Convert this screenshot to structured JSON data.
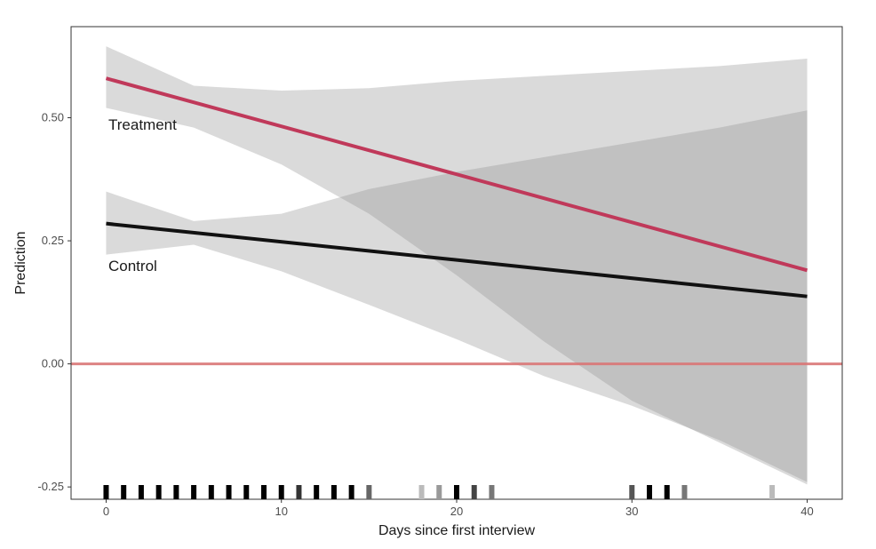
{
  "chart_data": {
    "type": "line",
    "xlabel": "Days since first interview",
    "ylabel": "Prediction",
    "xlim": [
      -2,
      42
    ],
    "ylim": [
      -0.275,
      0.685
    ],
    "x_ticks": [
      0,
      10,
      20,
      30,
      40
    ],
    "x_tick_labels": [
      "0",
      "10",
      "20",
      "30",
      "40"
    ],
    "y_ticks": [
      -0.25,
      0,
      0.25,
      0.5
    ],
    "y_tick_labels": [
      "-0.25",
      "0.00",
      "0.25",
      "0.50"
    ],
    "grid": false,
    "reference_line": {
      "y": 0,
      "color": "#d97575"
    },
    "series": [
      {
        "name": "Treatment",
        "color": "#c0395a",
        "x": [
          0,
          40
        ],
        "y": [
          0.58,
          0.19
        ],
        "ci_x": [
          0,
          5,
          10,
          15,
          20,
          25,
          30,
          35,
          40
        ],
        "ci_lower": [
          0.52,
          0.48,
          0.405,
          0.305,
          0.18,
          0.045,
          -0.075,
          -0.16,
          -0.245
        ],
        "ci_upper": [
          0.645,
          0.565,
          0.555,
          0.56,
          0.575,
          0.585,
          0.595,
          0.605,
          0.62
        ]
      },
      {
        "name": "Control",
        "color": "#111111",
        "x": [
          0,
          40
        ],
        "y": [
          0.285,
          0.137
        ],
        "ci_x": [
          0,
          5,
          10,
          15,
          20,
          25,
          30,
          35,
          40
        ],
        "ci_lower": [
          0.222,
          0.242,
          0.188,
          0.12,
          0.05,
          -0.025,
          -0.085,
          -0.155,
          -0.24
        ],
        "ci_upper": [
          0.35,
          0.29,
          0.305,
          0.355,
          0.39,
          0.42,
          0.45,
          0.48,
          0.515
        ]
      }
    ],
    "rug": [
      {
        "x": 0,
        "shade": "#000000"
      },
      {
        "x": 1,
        "shade": "#000000"
      },
      {
        "x": 2,
        "shade": "#000000"
      },
      {
        "x": 3,
        "shade": "#000000"
      },
      {
        "x": 4,
        "shade": "#000000"
      },
      {
        "x": 5,
        "shade": "#000000"
      },
      {
        "x": 6,
        "shade": "#000000"
      },
      {
        "x": 7,
        "shade": "#000000"
      },
      {
        "x": 8,
        "shade": "#000000"
      },
      {
        "x": 9,
        "shade": "#000000"
      },
      {
        "x": 10,
        "shade": "#000000"
      },
      {
        "x": 11,
        "shade": "#333333"
      },
      {
        "x": 12,
        "shade": "#000000"
      },
      {
        "x": 13,
        "shade": "#000000"
      },
      {
        "x": 14,
        "shade": "#000000"
      },
      {
        "x": 15,
        "shade": "#666666"
      },
      {
        "x": 18,
        "shade": "#bbbbbb"
      },
      {
        "x": 19,
        "shade": "#999999"
      },
      {
        "x": 20,
        "shade": "#000000"
      },
      {
        "x": 21,
        "shade": "#444444"
      },
      {
        "x": 22,
        "shade": "#777777"
      },
      {
        "x": 30,
        "shade": "#555555"
      },
      {
        "x": 31,
        "shade": "#000000"
      },
      {
        "x": 32,
        "shade": "#000000"
      },
      {
        "x": 33,
        "shade": "#777777"
      },
      {
        "x": 38,
        "shade": "#bbbbbb"
      }
    ]
  }
}
